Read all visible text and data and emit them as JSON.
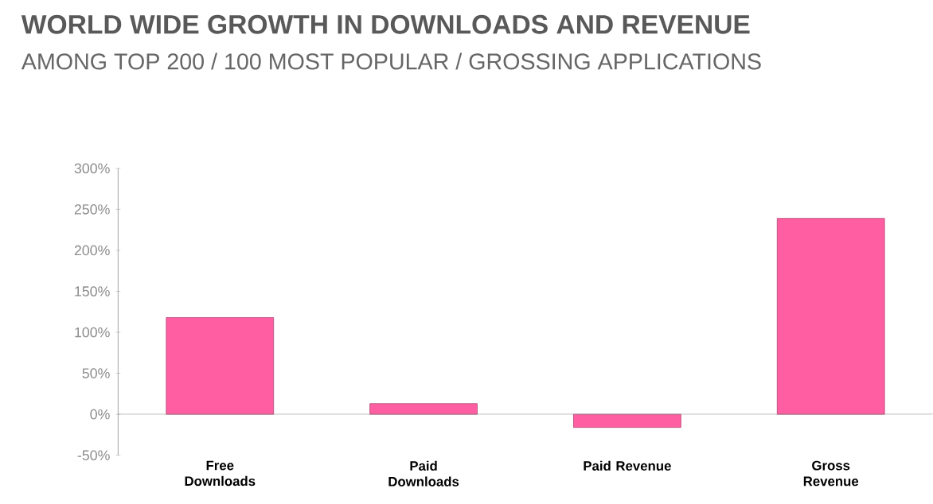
{
  "chart_data": {
    "type": "bar",
    "title": "WORLD WIDE GROWTH IN DOWNLOADS AND REVENUE",
    "subtitle": "AMONG TOP 200 / 100 MOST POPULAR / GROSSING APPLICATIONS",
    "categories": [
      "Free Downloads",
      "Paid Downloads",
      "Paid Revenue",
      "Gross Revenue"
    ],
    "values": [
      118,
      13,
      -16,
      239
    ],
    "color": "#ff5fa2",
    "ylim": [
      -50,
      300
    ],
    "yticks": [
      {
        "value": -50,
        "label": "-50%"
      },
      {
        "value": 0,
        "label": "0%"
      },
      {
        "value": 50,
        "label": "50%"
      },
      {
        "value": 100,
        "label": "100%"
      },
      {
        "value": 150,
        "label": "150%"
      },
      {
        "value": 200,
        "label": "200%"
      },
      {
        "value": 250,
        "label": "250%"
      },
      {
        "value": 300,
        "label": "300%"
      }
    ]
  }
}
